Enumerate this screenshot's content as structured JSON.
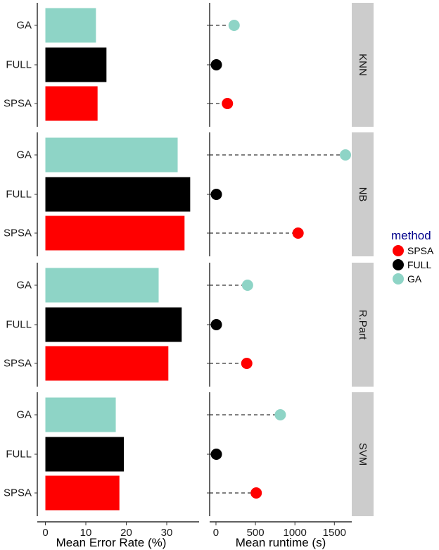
{
  "chart_data": {
    "type": "bar",
    "facets": [
      "KNN",
      "NB",
      "R.Part",
      "SVM"
    ],
    "categories": [
      "GA",
      "FULL",
      "SPSA"
    ],
    "error_panel": {
      "type": "bar",
      "xlabel": "Mean Error Rate (%)",
      "xlim": [
        -2,
        38
      ],
      "xticks": [
        0,
        10,
        20,
        30
      ],
      "values": {
        "KNN": {
          "GA": 12.5,
          "FULL": 15.1,
          "SPSA": 12.9
        },
        "NB": {
          "GA": 32.7,
          "FULL": 35.8,
          "SPSA": 34.4
        },
        "R.Part": {
          "GA": 28.0,
          "FULL": 33.7,
          "SPSA": 30.4
        },
        "SVM": {
          "GA": 17.4,
          "FULL": 19.4,
          "SPSA": 18.3
        }
      }
    },
    "runtime_panel": {
      "type": "scatter",
      "xlabel": "Mean runtime (s)",
      "xlim": [
        -80,
        1720
      ],
      "xticks": [
        0,
        500,
        1000,
        1500
      ],
      "values": {
        "KNN": {
          "GA": 230,
          "FULL": 5,
          "SPSA": 145
        },
        "NB": {
          "GA": 1640,
          "FULL": 5,
          "SPSA": 1040
        },
        "R.Part": {
          "GA": 400,
          "FULL": 5,
          "SPSA": 390
        },
        "SVM": {
          "GA": 815,
          "FULL": 5,
          "SPSA": 510
        }
      }
    },
    "legend": {
      "title": "method",
      "title_color": "#00008b",
      "position": "right",
      "entries": [
        {
          "name": "SPSA",
          "color": "#ff0000"
        },
        {
          "name": "FULL",
          "color": "#000000"
        },
        {
          "name": "GA",
          "color": "#8ed4c6"
        }
      ]
    },
    "colors": {
      "GA": "#8ed4c6",
      "FULL": "#000000",
      "SPSA": "#ff0000",
      "strip": "#cccccc"
    },
    "grid": false
  }
}
